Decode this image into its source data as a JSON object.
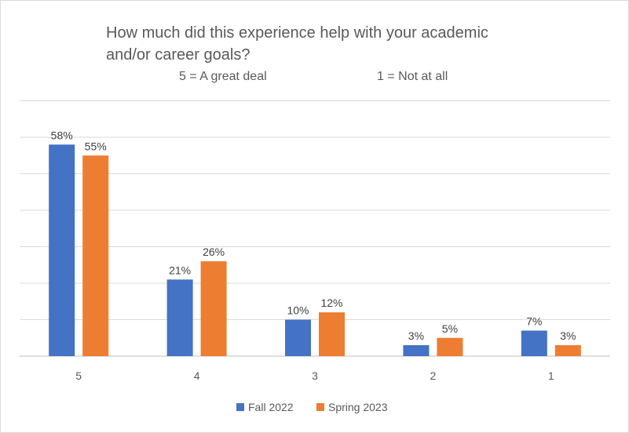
{
  "chart_data": {
    "type": "bar",
    "title_lines": [
      "How much did this experience help with your academic",
      "and/or career goals?"
    ],
    "subtitle_left": "5 = A great deal",
    "subtitle_right": "1 = Not at all",
    "categories": [
      "5",
      "4",
      "3",
      "2",
      "1"
    ],
    "series": [
      {
        "name": "Fall 2022",
        "color": "#4472C4",
        "values": [
          58,
          21,
          10,
          3,
          7
        ],
        "labels": [
          "58%",
          "21%",
          "10%",
          "3%",
          "7%"
        ]
      },
      {
        "name": "Spring 2023",
        "color": "#ED7D31",
        "values": [
          55,
          26,
          12,
          5,
          3
        ],
        "labels": [
          "55%",
          "26%",
          "12%",
          "5%",
          "3%"
        ]
      }
    ],
    "ylim": [
      0,
      70
    ],
    "gridlines": true,
    "legend_position": "bottom"
  }
}
